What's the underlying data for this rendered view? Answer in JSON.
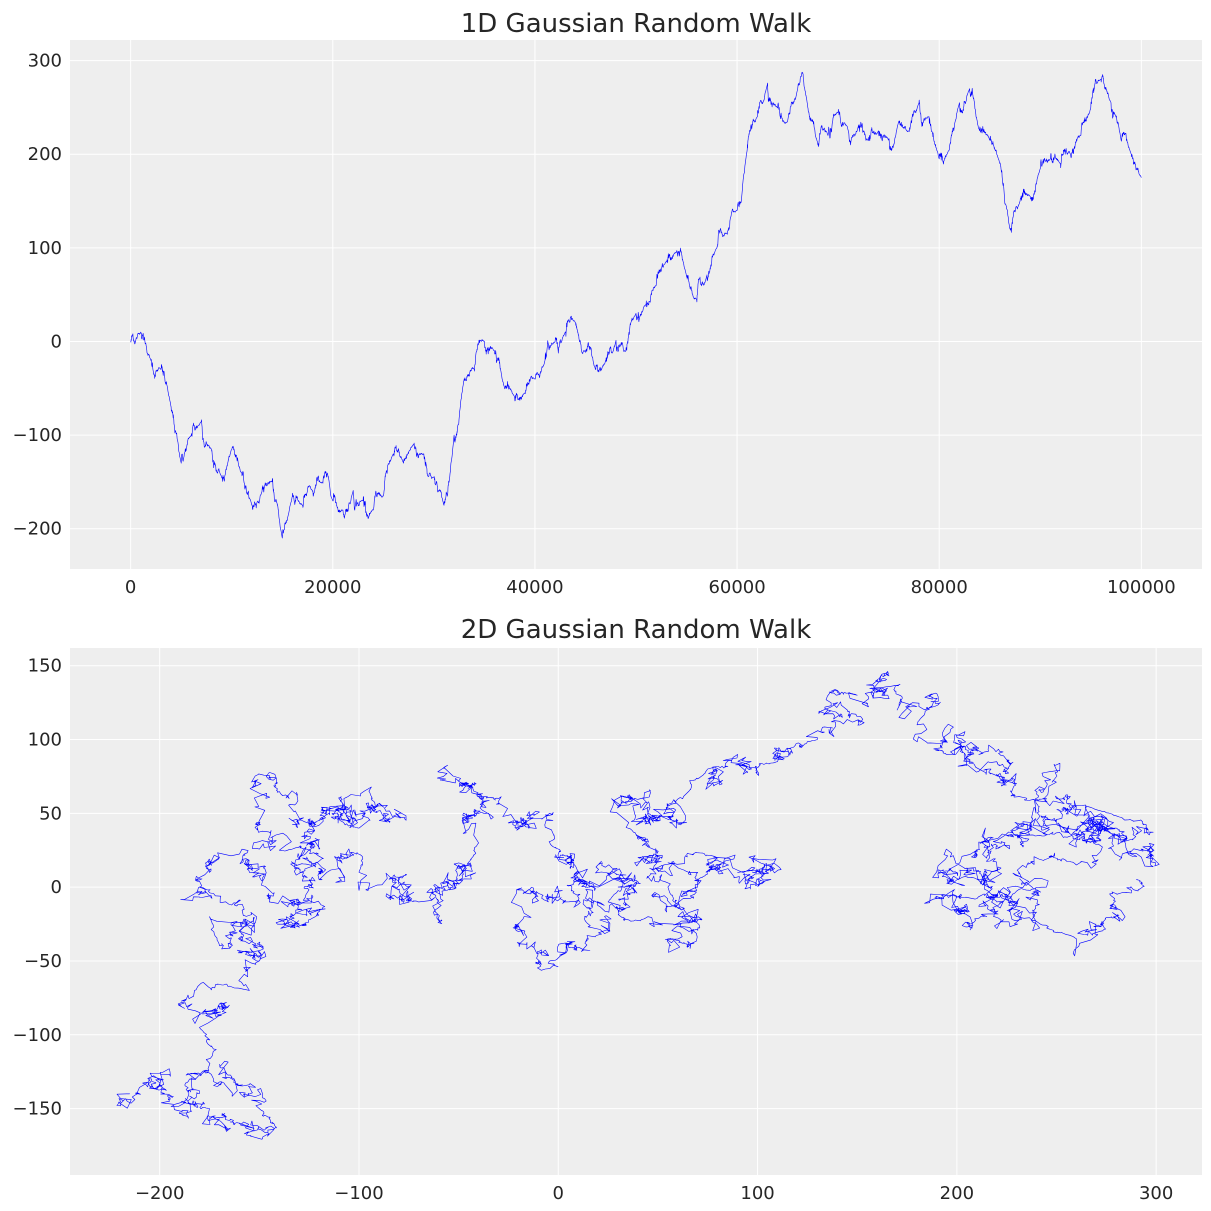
{
  "chart_data": [
    {
      "type": "line",
      "title": "1D Gaussian Random Walk",
      "xlabel": "",
      "ylabel": "",
      "xlim": [
        -6000,
        106000
      ],
      "ylim": [
        -243,
        322
      ],
      "x_ticks": [
        0,
        20000,
        40000,
        60000,
        80000,
        100000
      ],
      "x_tick_labels": [
        "0",
        "20000",
        "40000",
        "60000",
        "80000",
        "100000"
      ],
      "y_ticks": [
        -200,
        -100,
        0,
        100,
        200,
        300
      ],
      "y_tick_labels": [
        "−200",
        "−100",
        "0",
        "100",
        "200",
        "300"
      ],
      "grid": true,
      "color": "#0000ff",
      "series": [
        {
          "x": [
            0,
            1000,
            2000,
            3000,
            4000,
            5000,
            6000,
            7000,
            8000,
            9000,
            10000,
            11000,
            12000,
            13000,
            14000,
            15000,
            16000,
            17000,
            18000,
            19000,
            20000,
            21000,
            22000,
            23000,
            24000,
            25000,
            26000,
            27000,
            28000,
            29000,
            30000,
            31000,
            32000,
            33000,
            34000,
            35000,
            36000,
            37000,
            38000,
            39000,
            40000,
            41000,
            42000,
            43000,
            44000,
            45000,
            46000,
            47000,
            48000,
            49000,
            50000,
            51000,
            52000,
            53000,
            54000,
            55000,
            56000,
            57000,
            58000,
            59000,
            60000,
            61000,
            62000,
            63000,
            64000,
            65000,
            66000,
            67000,
            68000,
            69000,
            70000,
            71000,
            72000,
            73000,
            74000,
            75000,
            76000,
            77000,
            78000,
            79000,
            80000,
            81000,
            82000,
            83000,
            84000,
            85000,
            86000,
            87000,
            88000,
            89000,
            90000,
            91000,
            92000,
            93000,
            94000,
            95000,
            96000,
            97000,
            98000,
            99000,
            100000
          ],
          "y": [
            0,
            10,
            -20,
            -30,
            -70,
            -130,
            -100,
            -85,
            -115,
            -145,
            -115,
            -140,
            -175,
            -160,
            -150,
            -210,
            -165,
            -175,
            -160,
            -150,
            -170,
            -180,
            -160,
            -170,
            -180,
            -165,
            -120,
            -130,
            -110,
            -120,
            -145,
            -175,
            -100,
            -40,
            -30,
            0,
            -10,
            -50,
            -60,
            -55,
            -40,
            -20,
            0,
            10,
            20,
            -10,
            -30,
            -20,
            0,
            -10,
            30,
            40,
            60,
            85,
            95,
            70,
            45,
            70,
            100,
            115,
            140,
            205,
            240,
            275,
            250,
            235,
            270,
            250,
            210,
            220,
            245,
            225,
            230,
            215,
            225,
            215,
            235,
            225,
            255,
            240,
            195,
            205,
            255,
            270,
            225,
            215,
            190,
            120,
            150,
            155,
            185,
            195,
            190,
            200,
            220,
            250,
            280,
            255,
            215,
            200,
            175
          ]
        }
      ]
    },
    {
      "type": "line",
      "title": "2D Gaussian Random Walk",
      "xlabel": "",
      "ylabel": "",
      "xlim": [
        -245,
        323
      ],
      "ylim": [
        -195,
        162
      ],
      "x_ticks": [
        -200,
        -100,
        0,
        100,
        200,
        300
      ],
      "x_tick_labels": [
        "−200",
        "−100",
        "0",
        "100",
        "200",
        "300"
      ],
      "y_ticks": [
        -150,
        -100,
        -50,
        0,
        50,
        100,
        150
      ],
      "y_tick_labels": [
        "−150",
        "−100",
        "−50",
        "0",
        "50",
        "100",
        "150"
      ],
      "grid": true,
      "color": "#0000ff",
      "series": [
        {
          "x": [
            -215,
            -200,
            -195,
            -185,
            -175,
            -160,
            -150,
            -170,
            -180,
            -165,
            -155,
            -150,
            -160,
            -175,
            -180,
            -170,
            -155,
            -145,
            -130,
            -120,
            -125,
            -140,
            -150,
            -135,
            -115,
            -100,
            -90,
            -95,
            -110,
            -125,
            -130,
            -120,
            -100,
            -80,
            -70,
            -60,
            -50,
            -40,
            -35,
            -45,
            -30,
            -15,
            0,
            10,
            20,
            25,
            15,
            5,
            -10,
            -20,
            -5,
            10,
            30,
            45,
            55,
            60,
            70,
            80,
            95,
            105,
            90,
            70,
            55,
            40,
            35,
            30,
            45,
            60,
            75,
            90,
            110,
            130,
            145,
            150,
            160,
            170,
            180,
            195,
            210,
            220,
            230,
            245,
            260,
            270,
            280,
            295,
            280,
            265,
            250,
            240,
            225,
            210,
            200,
            190,
            200,
            215,
            230,
            245,
            260,
            265,
            255,
            235,
            215,
            200,
            220,
            240,
            260,
            280,
            290
          ],
          "y": [
            -140,
            -135,
            -145,
            -130,
            -150,
            -160,
            -150,
            -120,
            -95,
            -80,
            -70,
            -50,
            -30,
            -20,
            0,
            20,
            10,
            -10,
            -25,
            -15,
            5,
            25,
            45,
            60,
            50,
            40,
            55,
            65,
            60,
            45,
            20,
            5,
            10,
            5,
            -10,
            0,
            15,
            30,
            50,
            70,
            60,
            40,
            20,
            10,
            0,
            -10,
            -25,
            -40,
            -50,
            -30,
            -10,
            5,
            0,
            -20,
            -35,
            -20,
            10,
            20,
            5,
            15,
            10,
            5,
            0,
            20,
            40,
            55,
            50,
            45,
            80,
            90,
            85,
            100,
            120,
            130,
            140,
            120,
            110,
            90,
            95,
            85,
            70,
            60,
            55,
            45,
            35,
            20,
            40,
            55,
            60,
            45,
            35,
            25,
            10,
            -5,
            -15,
            -20,
            -10,
            0,
            15,
            30,
            40,
            35,
            20,
            5,
            -10,
            -25,
            -35,
            -20,
            5
          ]
        }
      ]
    }
  ]
}
